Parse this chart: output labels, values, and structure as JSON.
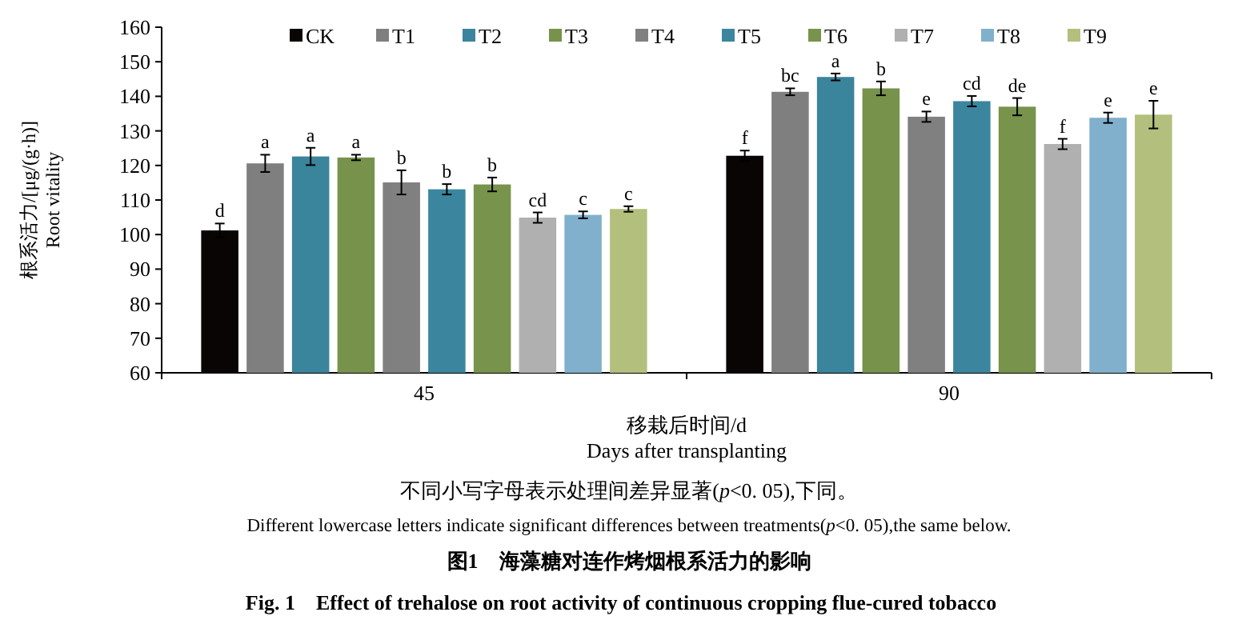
{
  "chart_data": {
    "type": "bar",
    "title": "图1　海藻糖对连作烤烟根系活力的影响",
    "subtitle": "Fig. 1　Effect of trehalose on root activity of continuous cropping flue-cured tobacco",
    "xlabel": "移栽后时间/d\nDays after transplanting",
    "ylabel": "根系活力/[μg/(g·h)]\nRoot vitality",
    "annotations": [
      "不同小写字母表示处理间差异显著(p<0. 05),下同。",
      "Different lowercase letters indicate significant differences between treatments(p<0. 05),the same below."
    ],
    "categories": [
      "45",
      "90"
    ],
    "ylim": [
      60,
      160
    ],
    "yticks": [
      60,
      70,
      80,
      90,
      100,
      110,
      120,
      130,
      140,
      150,
      160
    ],
    "grid": false,
    "legend": "top",
    "series": [
      {
        "name": "CK",
        "color": "#0a0505",
        "values": [
          101.2,
          122.8
        ],
        "errors": [
          2,
          1.5
        ],
        "value_labels": [
          "d",
          "f"
        ]
      },
      {
        "name": "T1",
        "color": "#7f7f7f",
        "values": [
          120.6,
          141.3
        ],
        "errors": [
          2.5,
          1
        ],
        "value_labels": [
          "a",
          "bc"
        ]
      },
      {
        "name": "T2",
        "color": "#3a849c",
        "values": [
          122.6,
          145.6
        ],
        "errors": [
          2.5,
          1
        ],
        "value_labels": [
          "a",
          "a"
        ]
      },
      {
        "name": "T3",
        "color": "#77924a",
        "values": [
          122.3,
          142.3
        ],
        "errors": [
          0.8,
          2
        ],
        "value_labels": [
          "a",
          "b"
        ]
      },
      {
        "name": "T4",
        "color": "#808080",
        "values": [
          115.1,
          134.1
        ],
        "errors": [
          3.5,
          1.5
        ],
        "value_labels": [
          "b",
          "e"
        ]
      },
      {
        "name": "T5",
        "color": "#3b869e",
        "values": [
          113.1,
          138.6
        ],
        "errors": [
          1.5,
          1.5
        ],
        "value_labels": [
          "b",
          "cd"
        ]
      },
      {
        "name": "T6",
        "color": "#78934b",
        "values": [
          114.5,
          137.0
        ],
        "errors": [
          2,
          2.5
        ],
        "value_labels": [
          "b",
          "de"
        ]
      },
      {
        "name": "T7",
        "color": "#b0b0b0",
        "values": [
          104.9,
          126.2
        ],
        "errors": [
          1.5,
          1.5
        ],
        "value_labels": [
          "cd",
          "f"
        ]
      },
      {
        "name": "T8",
        "color": "#80b0cc",
        "values": [
          105.7,
          133.8
        ],
        "errors": [
          1,
          1.5
        ],
        "value_labels": [
          "c",
          "e"
        ]
      },
      {
        "name": "T9",
        "color": "#b3bf7c",
        "values": [
          107.4,
          134.7
        ],
        "errors": [
          0.8,
          4
        ],
        "value_labels": [
          "c",
          "e"
        ]
      }
    ]
  }
}
